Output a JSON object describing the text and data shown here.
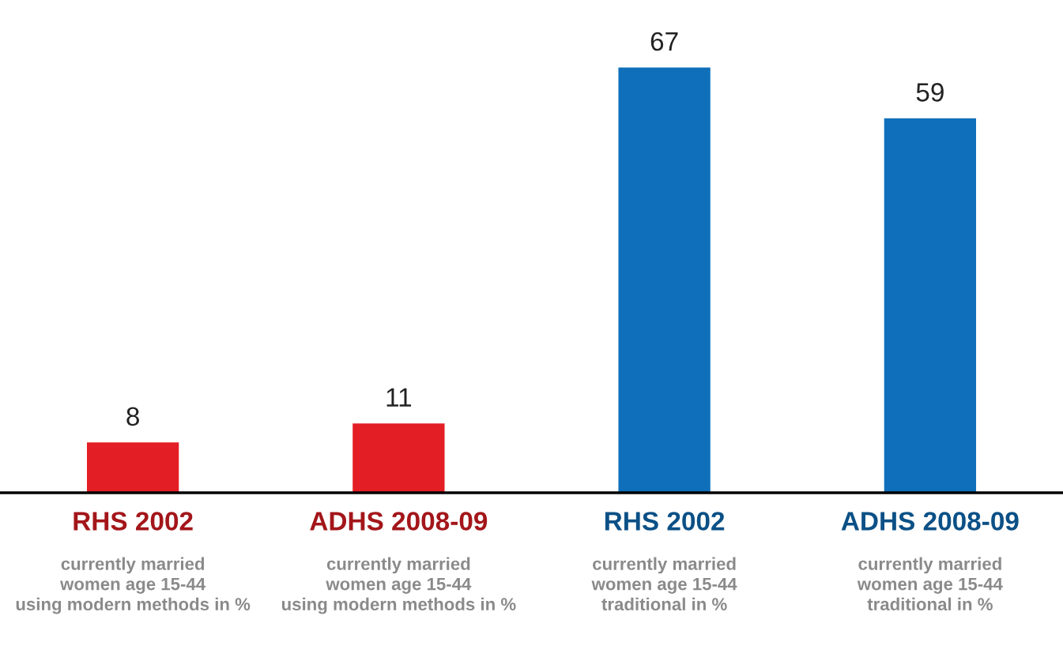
{
  "chart_data": {
    "type": "bar",
    "categories": [
      "RHS 2002",
      "ADHS 2008-09",
      "RHS 2002",
      "ADHS 2008-09"
    ],
    "values": [
      8,
      11,
      67,
      59
    ],
    "colors": [
      "#e31e24",
      "#e31e24",
      "#0f6fba",
      "#0f6fba"
    ],
    "data_labels": true,
    "annotations": [
      "currently married\nwomen age 15-44\nusing modern methods in %",
      "currently married\nwomen age 15-44\nusing modern methods in %",
      "currently married\nwomen age 15-44\ntraditional in %",
      "currently married\nwomen age 15-44\ntraditional in %"
    ]
  }
}
